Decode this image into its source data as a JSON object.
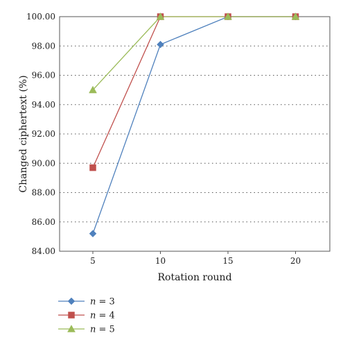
{
  "chart_data": {
    "type": "line",
    "categories": [
      "5",
      "10",
      "15",
      "20"
    ],
    "x": [
      5,
      10,
      15,
      20
    ],
    "xlabel": "Rotation round",
    "ylabel": "Changed ciphertext (%)",
    "ylim": [
      84,
      100
    ],
    "yticks": [
      "84.00",
      "86.00",
      "88.00",
      "90.00",
      "92.00",
      "94.00",
      "96.00",
      "98.00",
      "100.00"
    ],
    "grid": "horizontal dotted",
    "legend_position": "bottom-left",
    "series": [
      {
        "name_var": "n",
        "name_eq": " = 3",
        "values": [
          85.2,
          98.1,
          100,
          100
        ],
        "color": "#4f81bd",
        "marker": "diamond"
      },
      {
        "name_var": "n",
        "name_eq": " = 4",
        "values": [
          89.7,
          100,
          100,
          100
        ],
        "color": "#c0504d",
        "marker": "square"
      },
      {
        "name_var": "n",
        "name_eq": " = 5",
        "values": [
          95.0,
          100,
          100,
          100
        ],
        "color": "#9bbb59",
        "marker": "triangle"
      }
    ]
  }
}
